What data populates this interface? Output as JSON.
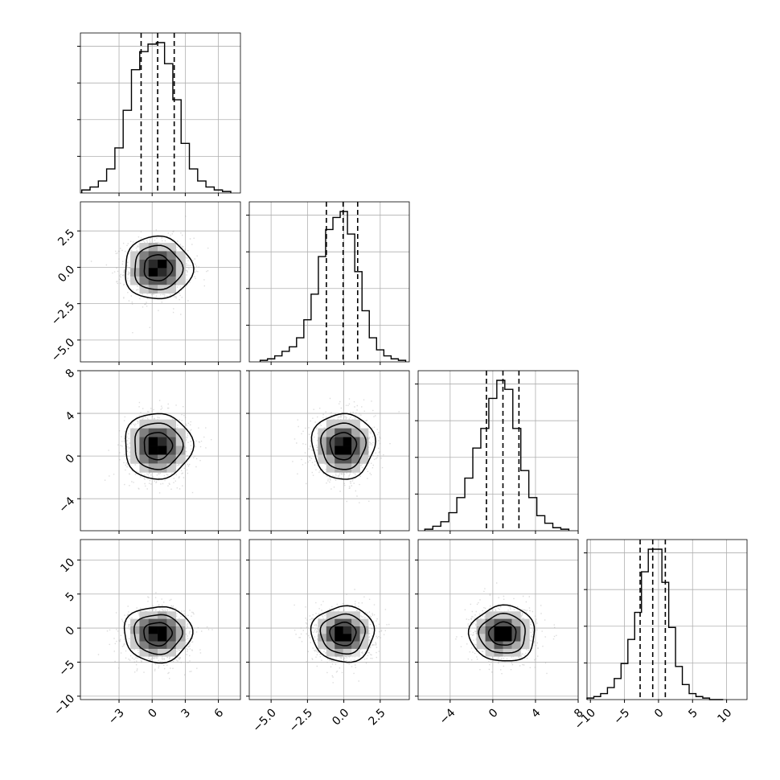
{
  "chart_data": {
    "type": "corner",
    "dimensions": 4,
    "grid": true,
    "quantile_lines": "dashed",
    "contour_levels": 3,
    "variables": [
      {
        "range": [
          -6.5,
          8.0
        ],
        "ticks": [
          -3,
          0,
          3,
          6
        ],
        "tick_labels": [
          "−3",
          "0",
          "3",
          "6"
        ],
        "quantiles": [
          -1.0,
          0.5,
          2.0
        ],
        "center": 0.5,
        "sigma": 1.5,
        "histogram": {
          "x": [
            -6.0,
            -5.25,
            -4.5,
            -3.75,
            -3.0,
            -2.25,
            -1.5,
            -0.75,
            0.0,
            0.75,
            1.5,
            2.25,
            3.0,
            3.75,
            4.5,
            5.25,
            6.0,
            6.75
          ],
          "counts": [
            2,
            4,
            8,
            16,
            30,
            55,
            82,
            94,
            99,
            100,
            86,
            62,
            33,
            16,
            8,
            4,
            2,
            1
          ]
        }
      },
      {
        "range": [
          -6.5,
          4.5
        ],
        "ticks": [
          -5.0,
          -2.5,
          0.0,
          2.5
        ],
        "tick_labels": [
          "−5.0",
          "−2.5",
          "0.0",
          "2.5"
        ],
        "y_tick_labels": [
          "2.5",
          "0.0",
          "−2.5",
          "−5.0"
        ],
        "quantiles": [
          -1.2,
          -0.05,
          0.95
        ],
        "center": -0.05,
        "sigma": 1.05,
        "histogram": {
          "x": [
            -5.5,
            -5.0,
            -4.5,
            -4.0,
            -3.5,
            -3.0,
            -2.5,
            -2.0,
            -1.5,
            -1.0,
            -0.5,
            0.0,
            0.5,
            1.0,
            1.5,
            2.0,
            2.5,
            3.0,
            3.5,
            4.0
          ],
          "counts": [
            1,
            2,
            4,
            7,
            10,
            16,
            28,
            45,
            70,
            88,
            96,
            100,
            85,
            60,
            34,
            16,
            8,
            4,
            2,
            1
          ]
        }
      },
      {
        "range": [
          -7.0,
          8.0
        ],
        "ticks": [
          -4,
          0,
          4,
          8
        ],
        "tick_labels": [
          "−4",
          "0",
          "4",
          "8"
        ],
        "quantiles": [
          -0.6,
          0.95,
          2.45
        ],
        "center": 0.95,
        "sigma": 1.5,
        "histogram": {
          "x": [
            -6.0,
            -5.25,
            -4.5,
            -3.75,
            -3.0,
            -2.25,
            -1.5,
            -0.75,
            0.0,
            0.75,
            1.5,
            2.25,
            3.0,
            3.75,
            4.5,
            5.25,
            6.0,
            6.75
          ],
          "counts": [
            1,
            3,
            6,
            12,
            22,
            35,
            55,
            68,
            88,
            100,
            94,
            68,
            40,
            22,
            10,
            5,
            2,
            1
          ]
        }
      },
      {
        "range": [
          -10.5,
          13.0
        ],
        "ticks": [
          -10,
          -5,
          0,
          5,
          10
        ],
        "tick_labels": [
          "−10",
          "−5",
          "0",
          "5",
          "10"
        ],
        "y_tick_labels": [
          "10",
          "5",
          "0",
          "−5",
          "−10"
        ],
        "quantiles": [
          -2.7,
          -0.85,
          1.0
        ],
        "center": -0.85,
        "sigma": 2.0,
        "histogram": {
          "x": [
            -10.0,
            -9.0,
            -8.0,
            -7.0,
            -6.0,
            -5.0,
            -4.0,
            -3.0,
            -2.0,
            -1.0,
            0.0,
            1.0,
            2.0,
            3.0,
            4.0,
            5.0,
            6.0,
            7.0,
            8.0,
            9.0
          ],
          "counts": [
            1,
            2,
            4,
            8,
            14,
            24,
            40,
            58,
            85,
            100,
            100,
            78,
            48,
            22,
            10,
            4,
            2,
            1,
            0,
            0
          ]
        }
      }
    ]
  }
}
